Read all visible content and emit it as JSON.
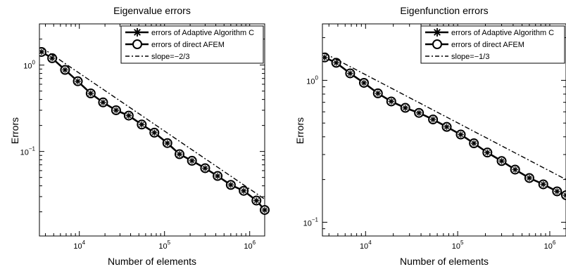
{
  "chart_data": [
    {
      "type": "line",
      "title": "Eigenvalue errors",
      "xlabel": "Number of elements",
      "ylabel": "Errors",
      "xscale": "log",
      "yscale": "log",
      "xlim": [
        3400,
        1500000
      ],
      "ylim": [
        0.0105,
        3.0
      ],
      "xticks": [
        {
          "value": 10000,
          "base": "10",
          "exp": "4"
        },
        {
          "value": 100000,
          "base": "10",
          "exp": "5"
        },
        {
          "value": 1000000,
          "base": "10",
          "exp": "6"
        }
      ],
      "yticks": [
        {
          "value": 0.1,
          "base": "10",
          "exp": "−1"
        },
        {
          "value": 1.0,
          "base": "10",
          "exp": "0"
        }
      ],
      "legend_position": "top-right",
      "series": [
        {
          "name": "errors of Adaptive Algorithm C",
          "style": "solid-asterisk",
          "x": [
            3600,
            4800,
            6800,
            9600,
            13600,
            19000,
            27000,
            38000,
            54000,
            76000,
            108000,
            150000,
            210000,
            300000,
            420000,
            600000,
            850000,
            1200000,
            1500000
          ],
          "y": [
            1.42,
            1.2,
            0.88,
            0.65,
            0.47,
            0.37,
            0.3,
            0.26,
            0.205,
            0.165,
            0.125,
            0.093,
            0.078,
            0.064,
            0.052,
            0.041,
            0.035,
            0.027,
            0.021
          ]
        },
        {
          "name": "errors of direct AFEM",
          "style": "solid-circle",
          "x": [
            3600,
            4800,
            6800,
            9600,
            13600,
            19000,
            27000,
            38000,
            54000,
            76000,
            108000,
            150000,
            210000,
            300000,
            420000,
            600000,
            850000,
            1200000,
            1500000
          ],
          "y": [
            1.42,
            1.2,
            0.88,
            0.65,
            0.47,
            0.37,
            0.3,
            0.26,
            0.205,
            0.165,
            0.125,
            0.093,
            0.078,
            0.064,
            0.052,
            0.041,
            0.035,
            0.027,
            0.021
          ]
        },
        {
          "name": "slope=−2/3",
          "style": "dashdot",
          "x": [
            3600,
            1500000
          ],
          "y": [
            1.6,
            0.028
          ]
        }
      ]
    },
    {
      "type": "line",
      "title": "Eigenfunction errors",
      "xlabel": "Number of elements",
      "ylabel": "Errors",
      "xscale": "log",
      "yscale": "log",
      "xlim": [
        3400,
        1500000
      ],
      "ylim": [
        0.08,
        2.5
      ],
      "xticks": [
        {
          "value": 10000,
          "base": "10",
          "exp": "4"
        },
        {
          "value": 100000,
          "base": "10",
          "exp": "5"
        },
        {
          "value": 1000000,
          "base": "10",
          "exp": "6"
        }
      ],
      "yticks": [
        {
          "value": 0.1,
          "base": "10",
          "exp": "−1"
        },
        {
          "value": 1.0,
          "base": "10",
          "exp": "0"
        }
      ],
      "legend_position": "top-right",
      "series": [
        {
          "name": "errors of Adaptive Algorithm C",
          "style": "solid-asterisk",
          "x": [
            3600,
            4800,
            6800,
            9600,
            13600,
            19000,
            27000,
            38000,
            54000,
            76000,
            108000,
            150000,
            210000,
            300000,
            420000,
            600000,
            850000,
            1200000,
            1500000
          ],
          "y": [
            1.45,
            1.33,
            1.12,
            0.96,
            0.81,
            0.71,
            0.64,
            0.59,
            0.53,
            0.47,
            0.415,
            0.36,
            0.31,
            0.27,
            0.235,
            0.205,
            0.185,
            0.165,
            0.155
          ]
        },
        {
          "name": "errors of direct AFEM",
          "style": "solid-circle",
          "x": [
            3600,
            4800,
            6800,
            9600,
            13600,
            19000,
            27000,
            38000,
            54000,
            76000,
            108000,
            150000,
            210000,
            300000,
            420000,
            600000,
            850000,
            1200000,
            1500000
          ],
          "y": [
            1.45,
            1.33,
            1.12,
            0.96,
            0.81,
            0.71,
            0.64,
            0.59,
            0.53,
            0.47,
            0.415,
            0.36,
            0.31,
            0.27,
            0.235,
            0.205,
            0.185,
            0.165,
            0.155
          ]
        },
        {
          "name": "slope=−1/3",
          "style": "dashdot",
          "x": [
            3600,
            1500000
          ],
          "y": [
            1.55,
            0.2
          ]
        }
      ]
    }
  ]
}
